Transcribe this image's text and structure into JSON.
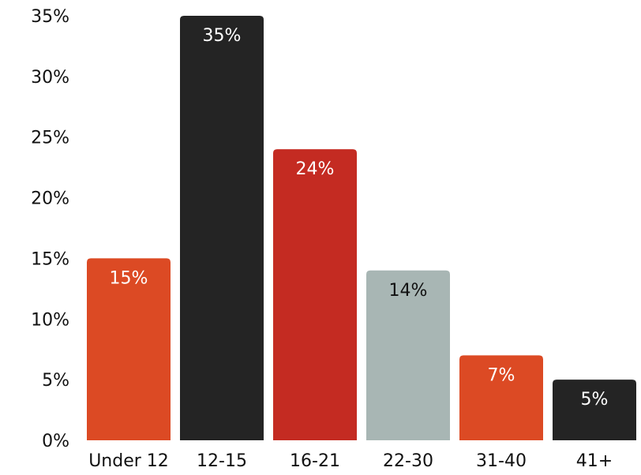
{
  "chart_data": {
    "type": "bar",
    "categories": [
      "Under 12",
      "12-15",
      "16-21",
      "22-30",
      "31-40",
      "41+"
    ],
    "values": [
      15,
      35,
      24,
      14,
      7,
      5
    ],
    "data_labels": [
      "15%",
      "35%",
      "24%",
      "14%",
      "7%",
      "5%"
    ],
    "bar_colors": [
      "#dc4a24",
      "#242424",
      "#c42b22",
      "#a8b6b4",
      "#dc4a24",
      "#242424"
    ],
    "label_colors": [
      "#ffffff",
      "#ffffff",
      "#ffffff",
      "#111111",
      "#ffffff",
      "#ffffff"
    ],
    "y_ticks": [
      0,
      5,
      10,
      15,
      20,
      25,
      30,
      35
    ],
    "y_tick_labels": [
      "0%",
      "5%",
      "10%",
      "15%",
      "20%",
      "25%",
      "30%",
      "35%"
    ],
    "ylim": [
      0,
      35
    ],
    "title": "",
    "xlabel": "",
    "ylabel": "",
    "grid": false,
    "legend": "none"
  }
}
